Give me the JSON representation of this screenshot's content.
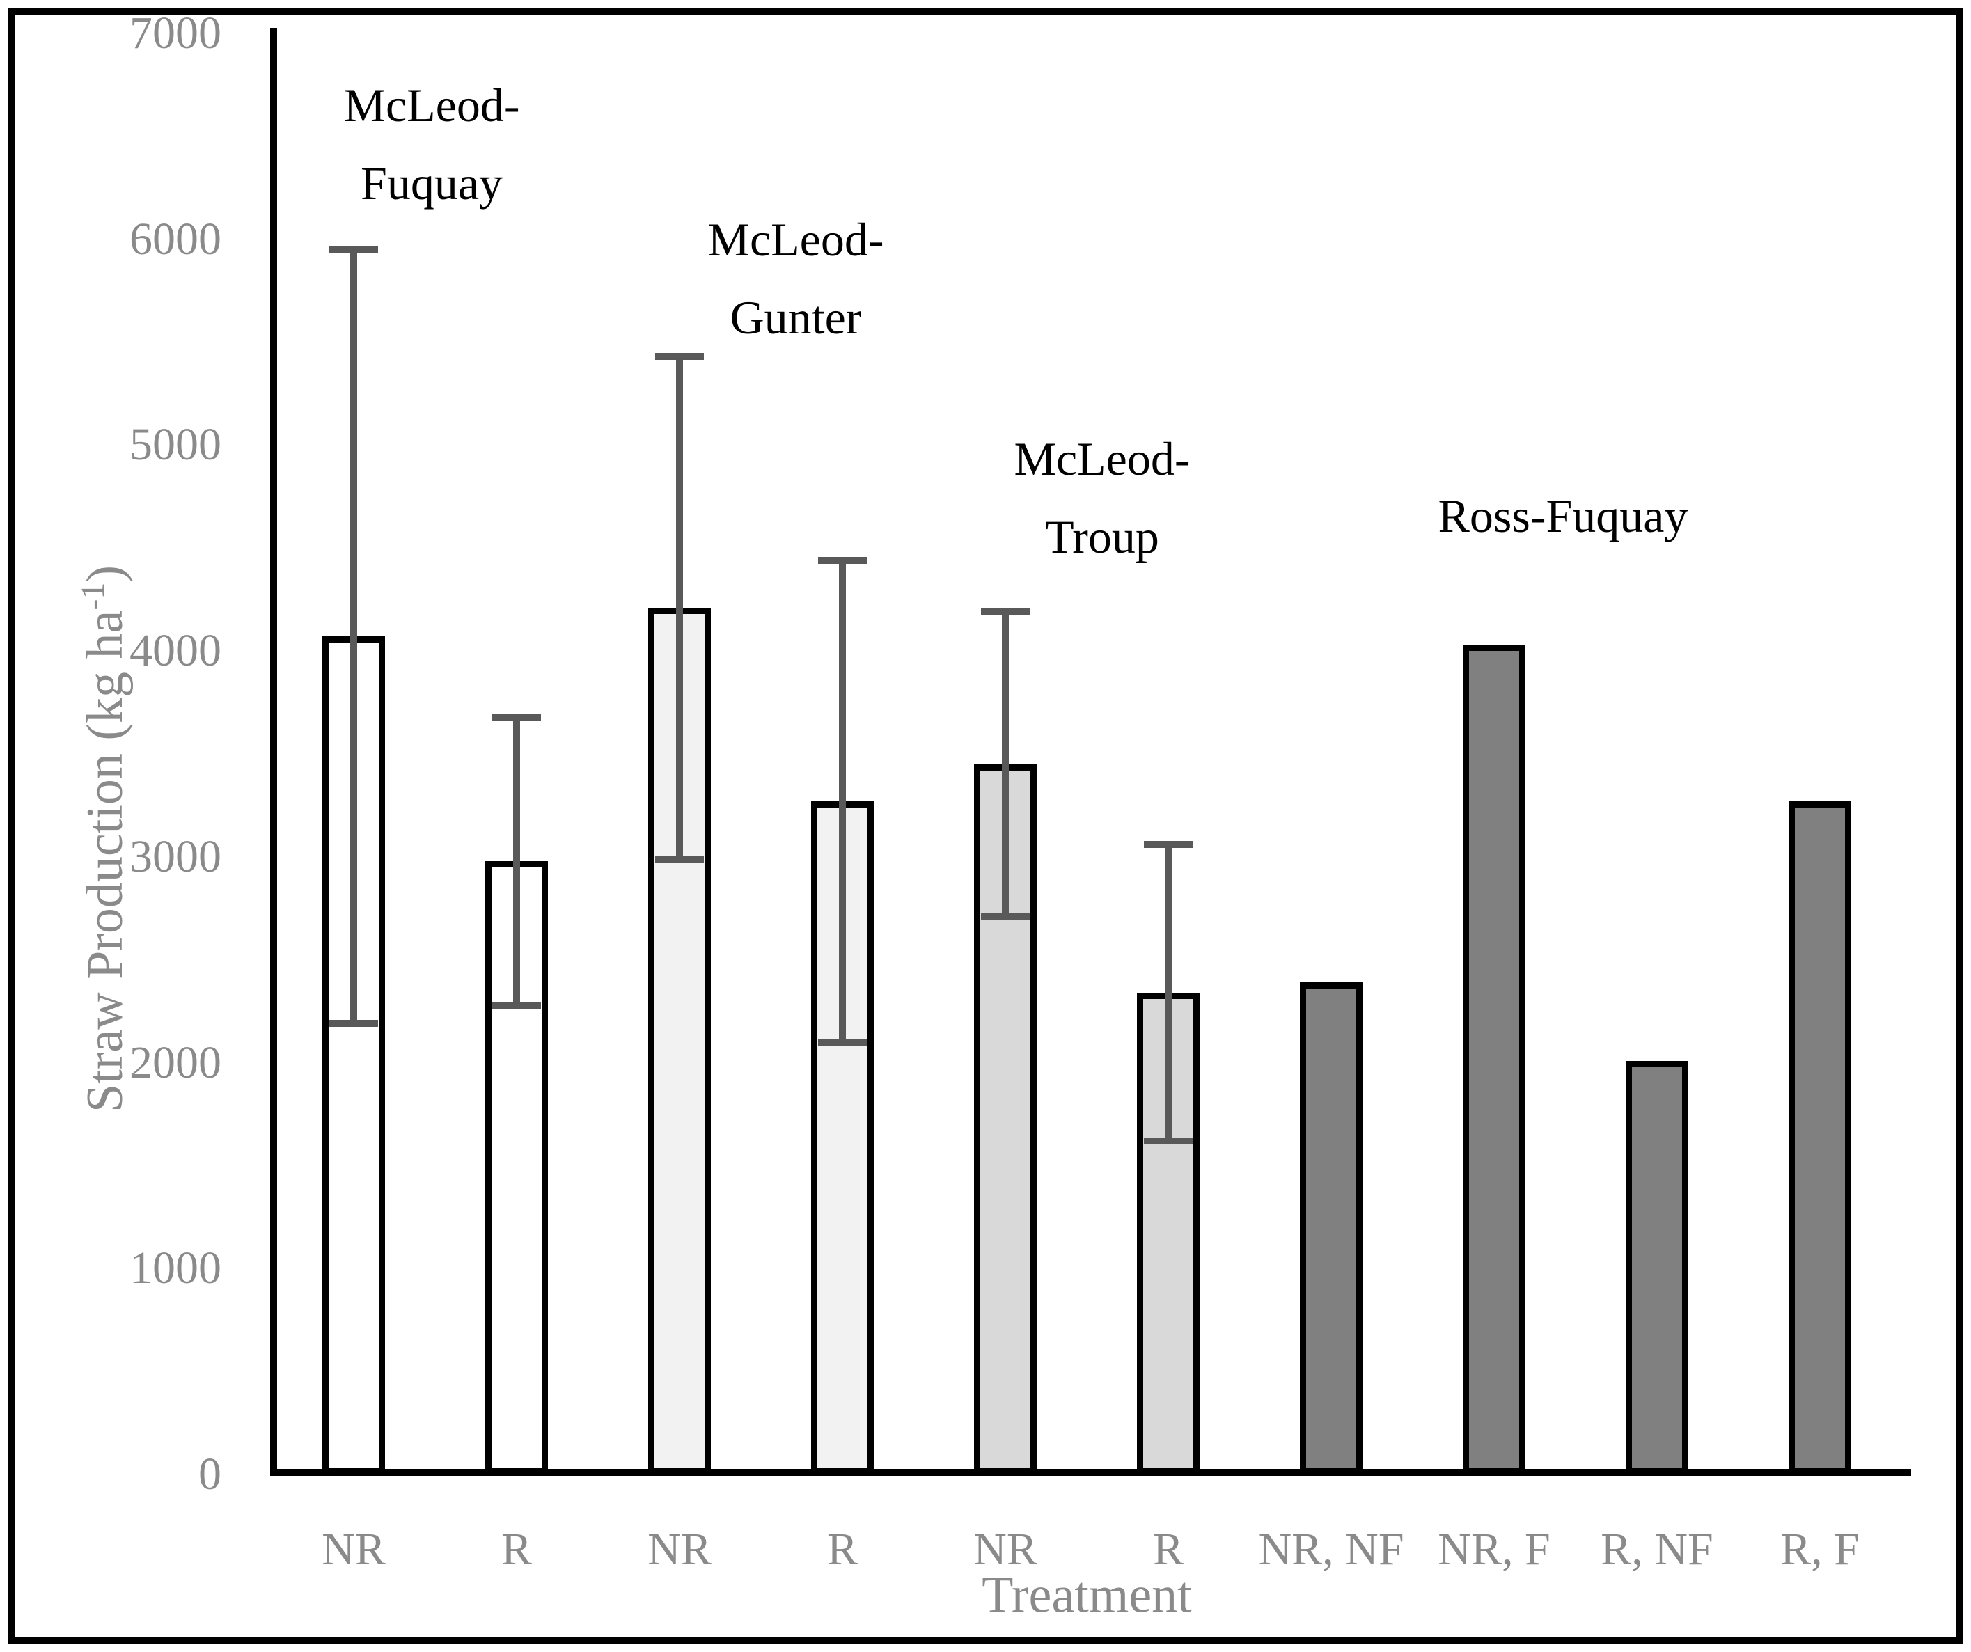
{
  "figure": {
    "background": "#ffffff",
    "border_color": "#000000",
    "text_color": "#8a8a8a",
    "group_label_color": "#000000"
  },
  "chart_data": {
    "type": "bar",
    "title": "",
    "xlabel": "Treatment",
    "ylabel_prefix": "Straw Production (kg ha",
    "ylabel_sup": "-1",
    "ylabel_suffix": ")",
    "ylim": [
      0,
      7000
    ],
    "ytick_interval": 1000,
    "ytick_labels": [
      "0",
      "1000",
      "2000",
      "3000",
      "4000",
      "5000",
      "6000",
      "7000"
    ],
    "grid": "off",
    "legend": "none",
    "categories": [
      "NR",
      "R",
      "NR",
      "R",
      "NR",
      "R",
      "NR, NF",
      "NR, F",
      "R, NF",
      "R, F"
    ],
    "values": [
      4070,
      2980,
      4210,
      3270,
      3450,
      2340,
      2390,
      4030,
      2010,
      3270
    ],
    "error_bars": [
      {
        "low": 2190,
        "high": 5950
      },
      {
        "low": 2280,
        "high": 3680
      },
      {
        "low": 2990,
        "high": 5430
      },
      {
        "low": 2100,
        "high": 4440
      },
      {
        "low": 2710,
        "high": 4190
      },
      {
        "low": 1620,
        "high": 3060
      },
      null,
      null,
      null,
      null
    ],
    "bar_colors": [
      "#ffffff",
      "#ffffff",
      "#f2f2f2",
      "#f2f2f2",
      "#d9d9d9",
      "#d9d9d9",
      "#808080",
      "#808080",
      "#808080",
      "#808080"
    ],
    "bar_outline": "#000000",
    "error_color": "#595959",
    "groups": [
      {
        "label": "McLeod-Fuquay",
        "lines": [
          "McLeod-",
          "Fuquay"
        ],
        "cx": 620,
        "top": 95
      },
      {
        "label": "McLeod-Gunter",
        "lines": [
          "McLeod-",
          "Gunter"
        ],
        "cx": 1143,
        "top": 288
      },
      {
        "label": "McLeod-Troup",
        "lines": [
          "McLeod-",
          "Troup"
        ],
        "cx": 1583,
        "top": 603
      },
      {
        "label": "Ross-Fuquay",
        "lines": [
          "Ross-Fuquay"
        ],
        "cx": 2245,
        "top": 685
      }
    ]
  }
}
